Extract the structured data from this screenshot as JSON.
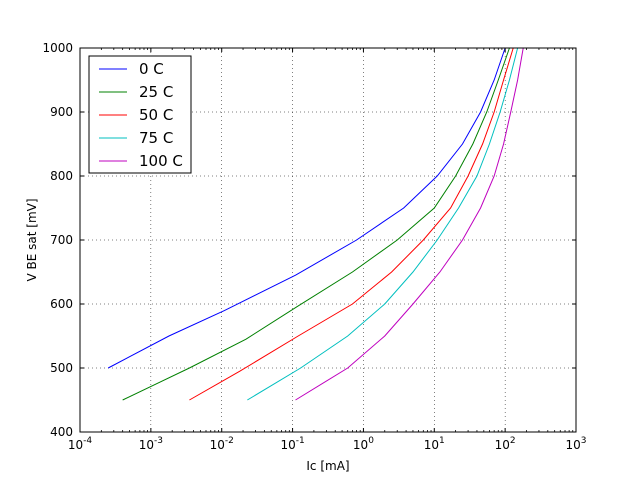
{
  "chart_data": {
    "type": "line",
    "title": "",
    "xlabel": "Ic [mA]",
    "ylabel": "V BE sat [mV]",
    "xscale": "log",
    "xlim": [
      0.0001,
      1000
    ],
    "ylim": [
      400,
      1000
    ],
    "x_tick_values": [
      0.0001,
      0.001,
      0.01,
      0.1,
      1,
      10,
      100,
      1000
    ],
    "x_tick_labels": [
      {
        "base": "10",
        "exp": "-4"
      },
      {
        "base": "10",
        "exp": "-3"
      },
      {
        "base": "10",
        "exp": "-2"
      },
      {
        "base": "10",
        "exp": "-1"
      },
      {
        "base": "10",
        "exp": "0"
      },
      {
        "base": "10",
        "exp": "1"
      },
      {
        "base": "10",
        "exp": "2"
      },
      {
        "base": "10",
        "exp": "3"
      }
    ],
    "y_ticks": [
      400,
      500,
      600,
      700,
      800,
      900,
      1000
    ],
    "grid": true,
    "legend_position": "top-left",
    "series": [
      {
        "name": "0 C",
        "color": "#0000ff",
        "x": [
          0.00025,
          0.0018,
          0.011,
          0.11,
          0.8,
          3.7,
          11,
          25,
          45,
          70,
          100
        ],
        "y": [
          500,
          550,
          590,
          645,
          700,
          750,
          800,
          850,
          900,
          950,
          1000
        ]
      },
      {
        "name": "25 C",
        "color": "#008000",
        "x": [
          0.0004,
          0.0035,
          0.022,
          0.12,
          0.7,
          3,
          10,
          20,
          35,
          55,
          80,
          115
        ],
        "y": [
          450,
          500,
          545,
          597,
          650,
          700,
          750,
          800,
          850,
          900,
          950,
          1000
        ]
      },
      {
        "name": "50 C",
        "color": "#ff0000",
        "x": [
          0.0035,
          0.018,
          0.12,
          0.7,
          2.5,
          7,
          17,
          30,
          48,
          70,
          95,
          130
        ],
        "y": [
          450,
          495,
          550,
          600,
          650,
          700,
          750,
          800,
          850,
          900,
          950,
          1000
        ]
      },
      {
        "name": "75 C",
        "color": "#00bfbf",
        "x": [
          0.023,
          0.13,
          0.6,
          2,
          5,
          11,
          22,
          40,
          60,
          85,
          115,
          150
        ],
        "y": [
          450,
          500,
          550,
          600,
          650,
          700,
          750,
          800,
          850,
          900,
          950,
          1000
        ]
      },
      {
        "name": "100 C",
        "color": "#bf00bf",
        "x": [
          0.11,
          0.6,
          2,
          5,
          12,
          25,
          45,
          70,
          95,
          120,
          150,
          180
        ],
        "y": [
          450,
          500,
          550,
          600,
          650,
          700,
          750,
          800,
          850,
          900,
          950,
          1000
        ]
      }
    ]
  }
}
